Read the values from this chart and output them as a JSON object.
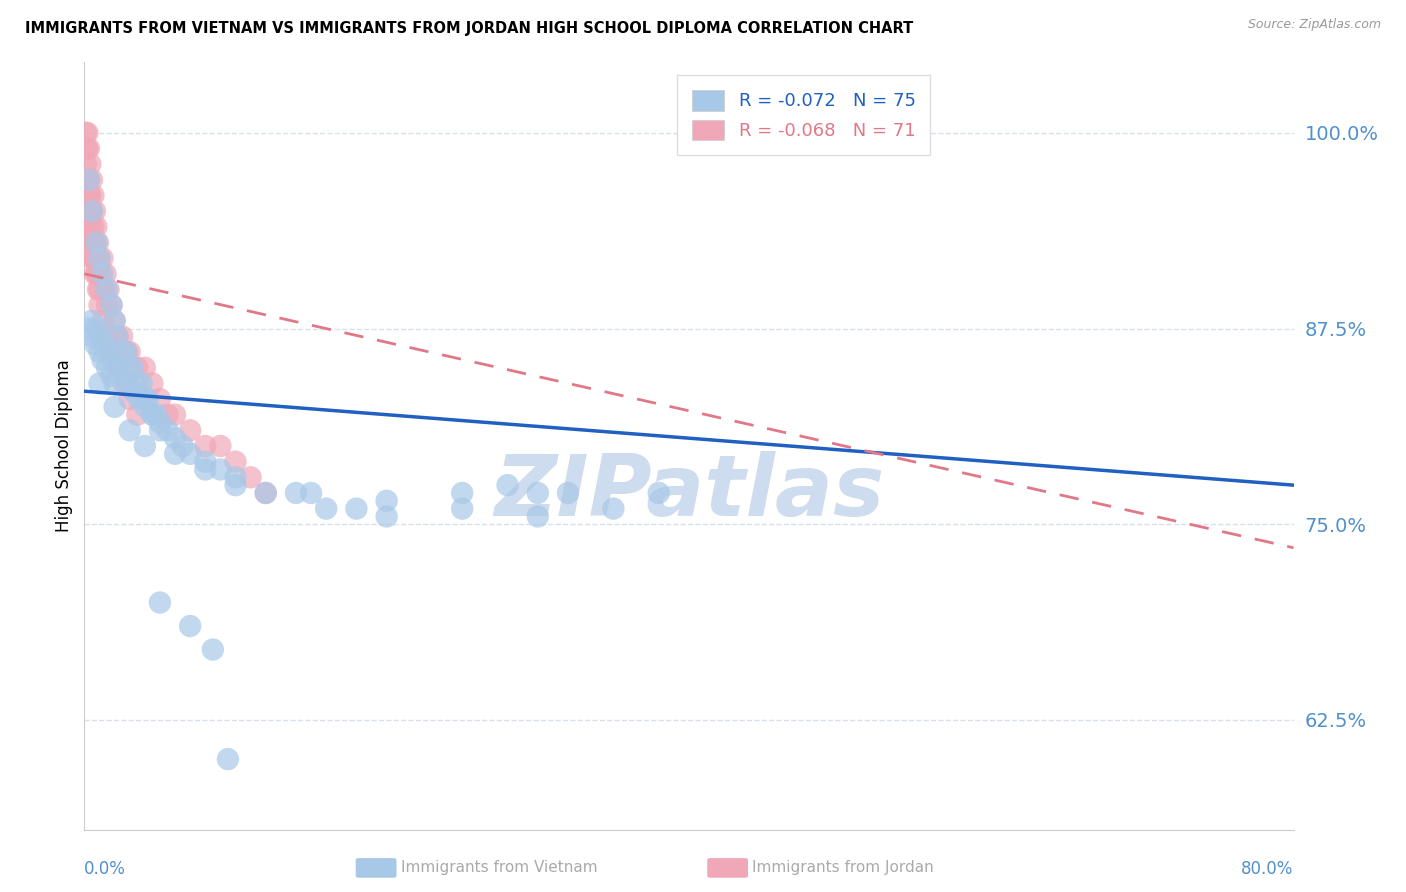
{
  "title": "IMMIGRANTS FROM VIETNAM VS IMMIGRANTS FROM JORDAN HIGH SCHOOL DIPLOMA CORRELATION CHART",
  "source": "Source: ZipAtlas.com",
  "ylabel": "High School Diploma",
  "ylabel_ticks": [
    "62.5%",
    "75.0%",
    "87.5%",
    "100.0%"
  ],
  "ylabel_vals": [
    0.625,
    0.75,
    0.875,
    1.0
  ],
  "xlim": [
    0.0,
    0.8
  ],
  "ylim": [
    0.555,
    1.045
  ],
  "legend_r1": "R = -0.072",
  "legend_n1": "N = 75",
  "legend_r2": "R = -0.068",
  "legend_n2": "N = 71",
  "color_vietnam": "#a8c8e8",
  "color_jordan": "#f0a8b8",
  "color_trendline_vietnam": "#2060c0",
  "color_trendline_jordan": "#e07888",
  "color_yticklabels": "#5090cc",
  "color_grid": "#d8e0ec",
  "watermark_text": "ZIPatlas",
  "watermark_color": "#cddcee",
  "bottom_label_color": "#aaaaaa",
  "vietnam_x": [
    0.003,
    0.005,
    0.008,
    0.01,
    0.012,
    0.015,
    0.018,
    0.02,
    0.022,
    0.025,
    0.028,
    0.03,
    0.032,
    0.035,
    0.038,
    0.04,
    0.042,
    0.045,
    0.048,
    0.05,
    0.003,
    0.005,
    0.007,
    0.01,
    0.012,
    0.015,
    0.018,
    0.02,
    0.005,
    0.008,
    0.01,
    0.013,
    0.016,
    0.019,
    0.022,
    0.025,
    0.028,
    0.032,
    0.036,
    0.04,
    0.045,
    0.05,
    0.055,
    0.06,
    0.065,
    0.07,
    0.08,
    0.09,
    0.1,
    0.12,
    0.14,
    0.16,
    0.18,
    0.2,
    0.25,
    0.3,
    0.35,
    0.28,
    0.32,
    0.38,
    0.01,
    0.02,
    0.03,
    0.04,
    0.06,
    0.08,
    0.1,
    0.15,
    0.2,
    0.25,
    0.3,
    0.05,
    0.07,
    0.085,
    0.095
  ],
  "vietnam_y": [
    0.97,
    0.95,
    0.93,
    0.92,
    0.91,
    0.9,
    0.89,
    0.88,
    0.87,
    0.86,
    0.86,
    0.85,
    0.85,
    0.84,
    0.84,
    0.83,
    0.83,
    0.82,
    0.82,
    0.81,
    0.875,
    0.87,
    0.865,
    0.86,
    0.855,
    0.85,
    0.845,
    0.84,
    0.88,
    0.875,
    0.87,
    0.865,
    0.86,
    0.855,
    0.85,
    0.845,
    0.84,
    0.835,
    0.83,
    0.825,
    0.82,
    0.815,
    0.81,
    0.805,
    0.8,
    0.795,
    0.79,
    0.785,
    0.78,
    0.77,
    0.77,
    0.76,
    0.76,
    0.755,
    0.77,
    0.77,
    0.76,
    0.775,
    0.77,
    0.77,
    0.84,
    0.825,
    0.81,
    0.8,
    0.795,
    0.785,
    0.775,
    0.77,
    0.765,
    0.76,
    0.755,
    0.7,
    0.685,
    0.67,
    0.6
  ],
  "jordan_x": [
    0.001,
    0.001,
    0.001,
    0.002,
    0.002,
    0.002,
    0.002,
    0.003,
    0.003,
    0.003,
    0.003,
    0.004,
    0.004,
    0.004,
    0.004,
    0.005,
    0.005,
    0.005,
    0.005,
    0.006,
    0.006,
    0.006,
    0.007,
    0.007,
    0.007,
    0.008,
    0.008,
    0.009,
    0.009,
    0.01,
    0.01,
    0.011,
    0.012,
    0.013,
    0.014,
    0.015,
    0.016,
    0.018,
    0.02,
    0.022,
    0.025,
    0.028,
    0.03,
    0.035,
    0.04,
    0.045,
    0.05,
    0.055,
    0.06,
    0.07,
    0.08,
    0.09,
    0.1,
    0.11,
    0.12,
    0.002,
    0.003,
    0.004,
    0.005,
    0.006,
    0.007,
    0.008,
    0.009,
    0.01,
    0.012,
    0.015,
    0.018,
    0.022,
    0.026,
    0.03,
    0.035
  ],
  "jordan_y": [
    1.0,
    0.99,
    0.98,
    1.0,
    0.99,
    0.97,
    0.96,
    0.99,
    0.97,
    0.96,
    0.94,
    0.98,
    0.96,
    0.95,
    0.93,
    0.97,
    0.95,
    0.93,
    0.92,
    0.96,
    0.94,
    0.92,
    0.95,
    0.93,
    0.91,
    0.94,
    0.92,
    0.93,
    0.91,
    0.92,
    0.9,
    0.91,
    0.92,
    0.9,
    0.91,
    0.89,
    0.9,
    0.89,
    0.88,
    0.87,
    0.87,
    0.86,
    0.86,
    0.85,
    0.85,
    0.84,
    0.83,
    0.82,
    0.82,
    0.81,
    0.8,
    0.8,
    0.79,
    0.78,
    0.77,
    0.97,
    0.96,
    0.95,
    0.94,
    0.93,
    0.92,
    0.91,
    0.9,
    0.89,
    0.88,
    0.87,
    0.86,
    0.85,
    0.84,
    0.83,
    0.82
  ],
  "viet_trend_x": [
    0.0,
    0.8
  ],
  "viet_trend_y": [
    0.835,
    0.775
  ],
  "jord_trend_x": [
    0.0,
    0.8
  ],
  "jord_trend_y": [
    0.91,
    0.735
  ]
}
